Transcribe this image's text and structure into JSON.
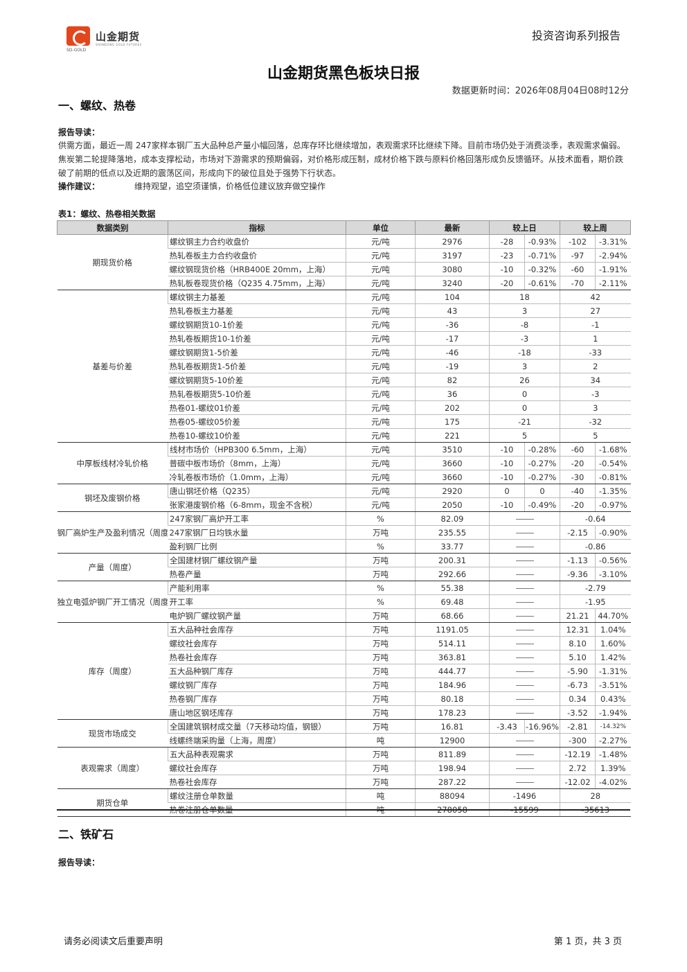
{
  "header": {
    "brand": "山金期货",
    "brand_en": "SD-GOLD",
    "brand_sub": "SHANDONG GOLD FUTURES",
    "series": "投资咨询系列报告"
  },
  "title": "山金期货黑色板块日报",
  "update_time": "数据更新时间：2026年08月04日08时12分",
  "section1": {
    "heading": "一、螺纹、热卷",
    "guide_label": "报告导读：",
    "guide_text": "供需方面，最近一周 247家样本钢厂五大品种总产量小幅回落，总库存环比继续增加，表观需求环比继续下降。目前市场仍处于消费淡季，表观需求偏弱。焦炭第二轮提降落地，成本支撑松动，市场对下游需求的预期偏弱，对价格形成压制，成材价格下跌与原料价格回落形成负反馈循环。从技术面看，期价跌破了前期的低点以及近期的震荡区间，形成向下的破位且处于强势下行状态。",
    "advice_label": "操作建议：",
    "advice_text": "维持观望，追空须谨慎，价格低位建议放弃做空操作",
    "table_caption": "表1：螺纹、热卷相关数据",
    "table_headers": [
      "数据类别",
      "指标",
      "单位",
      "最新",
      "较上日",
      "较上周"
    ]
  },
  "rows": [
    {
      "cat": "期现货价格",
      "span": 4,
      "ind": "螺纹钢主力合约收盘价",
      "unit": "元/吨",
      "latest": "2976",
      "d1": "-28",
      "d1p": "-0.93%",
      "w1": "-102",
      "w1p": "-3.31%"
    },
    {
      "ind": "热轧卷板主力合约收盘价",
      "unit": "元/吨",
      "latest": "3197",
      "d1": "-23",
      "d1p": "-0.71%",
      "w1": "-97",
      "w1p": "-2.94%"
    },
    {
      "ind": "螺纹钢现货价格（HRB400E 20mm，上海）",
      "unit": "元/吨",
      "latest": "3080",
      "d1": "-10",
      "d1p": "-0.32%",
      "w1": "-60",
      "w1p": "-1.91%"
    },
    {
      "ind": "热轧板卷现货价格（Q235 4.75mm，上海）",
      "unit": "元/吨",
      "latest": "3240",
      "d1": "-20",
      "d1p": "-0.61%",
      "w1": "-70",
      "w1p": "-2.11%"
    },
    {
      "cat": "基差与价差",
      "span": 11,
      "ind": "螺纹钢主力基差",
      "unit": "元/吨",
      "latest": "104",
      "d1m": "18",
      "w1m": "42"
    },
    {
      "ind": "热轧卷板主力基差",
      "unit": "元/吨",
      "latest": "43",
      "d1m": "3",
      "w1m": "27"
    },
    {
      "ind": "螺纹钢期货10-1价差",
      "unit": "元/吨",
      "latest": "-36",
      "d1m": "-8",
      "w1m": "-1"
    },
    {
      "ind": "热轧卷板期货10-1价差",
      "unit": "元/吨",
      "latest": "-17",
      "d1m": "-3",
      "w1m": "1"
    },
    {
      "ind": "螺纹钢期货1-5价差",
      "unit": "元/吨",
      "latest": "-46",
      "d1m": "-18",
      "w1m": "-33"
    },
    {
      "ind": "热轧卷板期货1-5价差",
      "unit": "元/吨",
      "latest": "-19",
      "d1m": "3",
      "w1m": "2"
    },
    {
      "ind": "螺纹钢期货5-10价差",
      "unit": "元/吨",
      "latest": "82",
      "d1m": "26",
      "w1m": "34"
    },
    {
      "ind": "热轧卷板期货5-10价差",
      "unit": "元/吨",
      "latest": "36",
      "d1m": "0",
      "w1m": "-3"
    },
    {
      "ind": "热卷01-螺纹01价差",
      "unit": "元/吨",
      "latest": "202",
      "d1m": "0",
      "w1m": "3"
    },
    {
      "ind": "热卷05-螺纹05价差",
      "unit": "元/吨",
      "latest": "175",
      "d1m": "-21",
      "w1m": "-32"
    },
    {
      "ind": "热卷10-螺纹10价差",
      "unit": "元/吨",
      "latest": "221",
      "d1m": "5",
      "w1m": "5"
    },
    {
      "cat": "中厚板线材冷轧价格",
      "span": 3,
      "ind": "线材市场价（HPB300 6.5mm，上海）",
      "unit": "元/吨",
      "latest": "3510",
      "d1": "-10",
      "d1p": "-0.28%",
      "w1": "-60",
      "w1p": "-1.68%"
    },
    {
      "ind": "普碳中板市场价（8mm，上海）",
      "unit": "元/吨",
      "latest": "3660",
      "d1": "-10",
      "d1p": "-0.27%",
      "w1": "-20",
      "w1p": "-0.54%"
    },
    {
      "ind": "冷轧卷板市场价（1.0mm，上海）",
      "unit": "元/吨",
      "latest": "3660",
      "d1": "-10",
      "d1p": "-0.27%",
      "w1": "-30",
      "w1p": "-0.81%"
    },
    {
      "cat": "钢坯及废钢价格",
      "span": 2,
      "ind": "唐山钢坯价格（Q235）",
      "unit": "元/吨",
      "latest": "2920",
      "d1": "0",
      "d1p": "0",
      "w1": "-40",
      "w1p": "-1.35%"
    },
    {
      "ind": "张家港废钢价格（6-8mm，现金不含税）",
      "unit": "元/吨",
      "latest": "2050",
      "d1": "-10",
      "d1p": "-0.49%",
      "w1": "-20",
      "w1p": "-0.97%"
    },
    {
      "cat": "钢厂高炉生产及盈利情况（周度）",
      "span": 3,
      "ind": "247家钢厂高炉开工率",
      "unit": "%",
      "latest": "82.09",
      "d1dash": true,
      "w1m": "-0.64"
    },
    {
      "ind": "247家钢厂日均铁水量",
      "unit": "万吨",
      "latest": "235.55",
      "d1dash": true,
      "w1": "-2.15",
      "w1p": "-0.90%"
    },
    {
      "ind": "盈利钢厂比例",
      "unit": "%",
      "latest": "33.77",
      "d1dash": true,
      "w1m": "-0.86"
    },
    {
      "cat": "产量（周度）",
      "span": 2,
      "ind": "全国建材钢厂螺纹钢产量",
      "unit": "万吨",
      "latest": "200.31",
      "d1dash": true,
      "w1": "-1.13",
      "w1p": "-0.56%"
    },
    {
      "ind": "热卷产量",
      "unit": "万吨",
      "latest": "292.66",
      "d1dash": true,
      "w1": "-9.36",
      "w1p": "-3.10%"
    },
    {
      "cat": "独立电弧炉钢厂开工情况（周度）",
      "span": 3,
      "ind": "产能利用率",
      "unit": "%",
      "latest": "55.38",
      "d1dash": true,
      "w1m": "-2.79"
    },
    {
      "ind": "开工率",
      "unit": "%",
      "latest": "69.48",
      "d1dash": true,
      "w1m": "-1.95"
    },
    {
      "ind": "电炉钢厂螺纹钢产量",
      "unit": "万吨",
      "latest": "68.66",
      "d1dash": true,
      "w1": "21.21",
      "w1p": "44.70%"
    },
    {
      "cat": "库存（周度）",
      "span": 7,
      "ind": "五大品种社会库存",
      "unit": "万吨",
      "latest": "1191.05",
      "d1dash": true,
      "w1": "12.31",
      "w1p": "1.04%"
    },
    {
      "ind": "螺纹社会库存",
      "unit": "万吨",
      "latest": "514.11",
      "d1dash": true,
      "w1": "8.10",
      "w1p": "1.60%"
    },
    {
      "ind": "热卷社会库存",
      "unit": "万吨",
      "latest": "363.81",
      "d1dash": true,
      "w1": "5.10",
      "w1p": "1.42%"
    },
    {
      "ind": "五大品种钢厂库存",
      "unit": "万吨",
      "latest": "444.77",
      "d1dash": true,
      "w1": "-5.90",
      "w1p": "-1.31%"
    },
    {
      "ind": "螺纹钢厂库存",
      "unit": "万吨",
      "latest": "184.96",
      "d1dash": true,
      "w1": "-6.73",
      "w1p": "-3.51%"
    },
    {
      "ind": "热卷钢厂库存",
      "unit": "万吨",
      "latest": "80.18",
      "d1dash": true,
      "w1": "0.34",
      "w1p": "0.43%"
    },
    {
      "ind": "唐山地区钢坯库存",
      "unit": "万吨",
      "latest": "178.23",
      "d1dash": true,
      "w1": "-3.52",
      "w1p": "-1.94%"
    },
    {
      "cat": "现货市场成交",
      "span": 2,
      "ind": "全国建筑钢材成交量（7天移动均值，钢银）",
      "unit": "万吨",
      "latest": "16.81",
      "d1": "-3.43",
      "d1p": "-16.96%",
      "w1": "-2.81",
      "w1p": "-14.32%",
      "small": true
    },
    {
      "ind": "线螺终端采购量（上海，周度）",
      "unit": "吨",
      "latest": "12900",
      "d1dash": true,
      "w1": "-300",
      "w1p": "-2.27%"
    },
    {
      "cat": "表观需求（周度）",
      "span": 3,
      "ind": "五大品种表观需求",
      "unit": "万吨",
      "latest": "811.89",
      "d1dash": true,
      "w1": "-12.19",
      "w1p": "-1.48%"
    },
    {
      "ind": "螺纹社会库存",
      "unit": "万吨",
      "latest": "198.94",
      "d1dash": true,
      "w1": "2.72",
      "w1p": "1.39%"
    },
    {
      "ind": "热卷社会库存",
      "unit": "万吨",
      "latest": "287.22",
      "d1dash": true,
      "w1": "-12.02",
      "w1p": "-4.02%"
    },
    {
      "cat": "期货仓单",
      "span": 2,
      "ind": "螺纹注册仓单数量",
      "unit": "吨",
      "latest": "88094",
      "d1m": "-1496",
      "w1m": "28"
    },
    {
      "ind": "热卷注册仓单数量",
      "unit": "吨",
      "latest": "278058",
      "d1m": "-15599",
      "w1m": "-35613"
    }
  ],
  "section2": {
    "heading": "二、铁矿石",
    "guide_label": "报告导读："
  },
  "footer": {
    "left": "请务必阅读文后重要声明",
    "right": "第 1 页，共 3 页"
  },
  "colors": {
    "up": "#e8363d",
    "down": "#2aa640",
    "header_bg": "#d9d9d9"
  }
}
